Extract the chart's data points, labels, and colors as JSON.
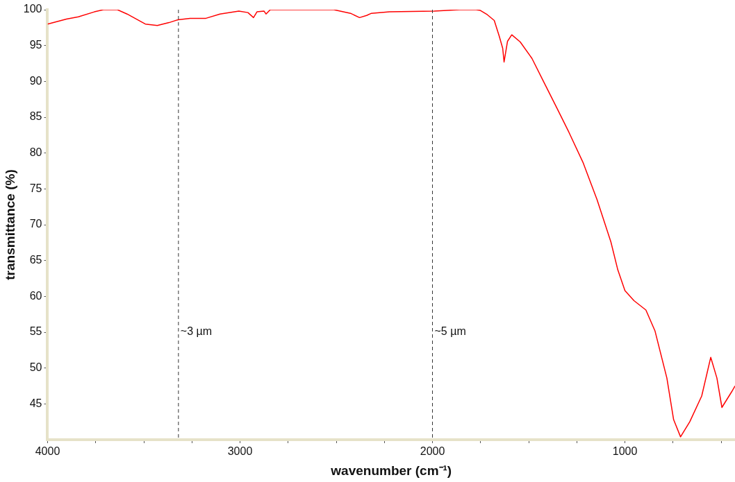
{
  "chart_data": {
    "type": "line",
    "xlabel": "wavenumber (cm⁻¹)",
    "ylabel": "transmittance (%)",
    "marker": "none",
    "xlim": [
      4000,
      428
    ],
    "ylim": [
      40,
      100
    ],
    "xticks": [
      4000,
      {
        "value": 3750,
        "label": null
      },
      {
        "value": 3500,
        "label": null
      },
      {
        "value": 3250,
        "label": null
      },
      3000,
      {
        "value": 2750,
        "label": null
      },
      {
        "value": 2500,
        "label": null
      },
      {
        "value": 2250,
        "label": null
      },
      2000,
      {
        "value": 1750,
        "label": null
      },
      {
        "value": 1500,
        "label": null
      },
      {
        "value": 1250,
        "label": null
      },
      1000,
      {
        "value": 750,
        "label": null
      },
      {
        "value": 500,
        "label": null
      }
    ],
    "yticks": [
      45,
      50,
      55,
      60,
      65,
      70,
      75,
      80,
      85,
      90,
      95,
      100
    ],
    "x": [
      4000,
      3902,
      3840,
      3757,
      3710,
      3637,
      3587,
      3492,
      3430,
      3369,
      3322,
      3260,
      3177,
      3104,
      3006,
      2959,
      2930,
      2912,
      2875,
      2865,
      2843,
      2513,
      2426,
      2379,
      2342,
      2317,
      2223,
      1991,
      1860,
      1773,
      1751,
      1715,
      1679,
      1653,
      1635,
      1628,
      1610,
      1588,
      1544,
      1483,
      1425,
      1352,
      1291,
      1218,
      1145,
      1073,
      1037,
      1000,
      953,
      891,
      844,
      782,
      747,
      711,
      663,
      601,
      554,
      522,
      496,
      445,
      428
    ],
    "series": [
      {
        "color": "#ff0000",
        "values": [
          98.0,
          98.7,
          99.0,
          99.7,
          100,
          100,
          99.4,
          98.0,
          97.8,
          98.2,
          98.6,
          98.8,
          98.8,
          99.4,
          99.8,
          99.6,
          98.9,
          99.7,
          99.8,
          99.4,
          100,
          100,
          99.5,
          98.9,
          99.2,
          99.5,
          99.7,
          99.8,
          100,
          100,
          99.9,
          99.3,
          98.5,
          96.3,
          94.6,
          92.7,
          95.6,
          96.5,
          95.5,
          93.2,
          90.1,
          86.2,
          82.9,
          78.7,
          73.5,
          67.6,
          63.7,
          60.8,
          59.4,
          58.1,
          55.2,
          48.6,
          42.8,
          40.4,
          42.5,
          46.1,
          51.5,
          48.6,
          44.5,
          46.7,
          47.5
        ]
      }
    ],
    "ref_lines": [
      {
        "axis": "x",
        "value": 3320,
        "label": "~3 µm",
        "color": "#333333",
        "line_style": "dashed"
      },
      {
        "axis": "x",
        "value": 2000,
        "label": "~5 µm",
        "color": "#333333",
        "line_style": "dashed"
      }
    ]
  }
}
